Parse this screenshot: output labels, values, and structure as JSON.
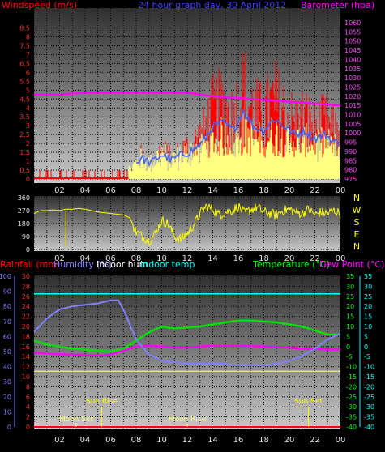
{
  "page_title": "24 hour graph day, 30 April 2012",
  "x_ticks": [
    "02",
    "04",
    "06",
    "08",
    "10",
    "12",
    "14",
    "16",
    "18",
    "20",
    "22",
    "00"
  ],
  "colors": {
    "wind": "#ff0000",
    "gust_fill": "#ffff80",
    "avg_line": "#4060ff",
    "baro": "#ff00ff",
    "winddir": "#ffff00",
    "humidity": "#8080ff",
    "indoor_hum": "#ffffff",
    "indoor_temp": "#00ffff",
    "temp": "#00e000",
    "dew": "#ff00ff",
    "rain": "#ff0000",
    "dewpt_hline": "#ffff80",
    "sun": "#ffff00",
    "moon": "#ffff80"
  },
  "chart_data": [
    {
      "type": "line",
      "name": "wind-baro",
      "labels": {
        "left": "Windspeed (m/s)",
        "center": "24 hour graph day, 30 April 2012",
        "right": "Barometer (hpa)"
      },
      "y_left_ticks": [
        "0",
        "0.5",
        "1",
        "1.5",
        "2",
        "2.5",
        "3",
        "3.5",
        "4",
        "4.5",
        "5",
        "5.5",
        "6",
        "6.5",
        "7",
        "7.5",
        "8",
        "8.5"
      ],
      "y_right_ticks": [
        "975",
        "980",
        "985",
        "990",
        "995",
        "1000",
        "1005",
        "1010",
        "1015",
        "1020",
        "1025",
        "1030",
        "1035",
        "1040",
        "1045",
        "1050",
        "1055",
        "1060"
      ],
      "ylim_left": [
        0,
        8.8
      ],
      "ylim_right": [
        975,
        1060
      ],
      "xlim": [
        0,
        24
      ],
      "series": [
        {
          "name": "Windspeed",
          "x": [
            0.6,
            1.2,
            2.0,
            2.8,
            3.6,
            4.4,
            5.2,
            6.0,
            6.8,
            7.6,
            8.4,
            9.2,
            10.0,
            10.8,
            11.6,
            12.4,
            13.2,
            14.0,
            14.8,
            15.6,
            16.4,
            17.2,
            18.0,
            18.8,
            19.6,
            20.4,
            21.2,
            22.0,
            22.8,
            23.6
          ],
          "y": [
            0.5,
            0.5,
            0.4,
            0.5,
            0.5,
            0.4,
            0.5,
            0.4,
            0.5,
            1.0,
            2.0,
            1.5,
            2.5,
            1.8,
            2.5,
            3.0,
            4.0,
            6.0,
            6.5,
            5.5,
            8.0,
            6.0,
            5.5,
            7.0,
            6.0,
            5.0,
            5.5,
            4.5,
            5.0,
            4.0
          ]
        },
        {
          "name": "Barometer",
          "x": [
            0,
            2,
            4,
            6,
            8,
            10,
            12,
            14,
            16,
            18,
            20,
            22,
            24
          ],
          "y": [
            1021,
            1021,
            1022,
            1022,
            1022,
            1022,
            1022,
            1020,
            1019,
            1018,
            1017,
            1016,
            1015
          ]
        }
      ]
    },
    {
      "type": "line",
      "name": "wind-direction",
      "y_ticks": [
        "360",
        "270",
        "180",
        "90",
        "0"
      ],
      "compass": [
        "N",
        "W",
        "S",
        "E",
        "N"
      ],
      "ylim": [
        0,
        360
      ],
      "series": [
        {
          "name": "Wind direction",
          "x": [
            0,
            0.5,
            1.0,
            1.5,
            2.0,
            2.5,
            3.0,
            3.5,
            4.0,
            4.5,
            5.0,
            5.5,
            6.0,
            6.5,
            7.0,
            7.5,
            8.0,
            8.5,
            9.0,
            9.5,
            10.0,
            10.5,
            11.0,
            11.5,
            12.0,
            12.5,
            13.0,
            13.5,
            14.0,
            14.5,
            15.0,
            15.5,
            16.0,
            16.5,
            17.0,
            17.5,
            18.0,
            18.5,
            19.0,
            19.5,
            20.0,
            20.5,
            21.0,
            21.5,
            22.0,
            22.5,
            23.0,
            23.5,
            24.0
          ],
          "y": [
            250,
            270,
            270,
            275,
            270,
            280,
            280,
            285,
            280,
            270,
            260,
            255,
            250,
            245,
            240,
            220,
            120,
            90,
            60,
            110,
            200,
            180,
            90,
            70,
            110,
            170,
            250,
            300,
            280,
            240,
            260,
            270,
            300,
            250,
            280,
            290,
            260,
            250,
            240,
            270,
            280,
            260,
            250,
            280,
            240,
            260,
            250,
            270,
            250
          ]
        }
      ]
    },
    {
      "type": "line",
      "name": "temp-humidity",
      "labels": {
        "rain": "Rainfall (mm)",
        "humidity": "Humidity (%)",
        "indoor_hum": "Indoor hum",
        "indoor_temp": "Indoor temp",
        "temp": "Temperature (°C)",
        "dew": "Dew Point (°C)"
      },
      "y_rain_ticks": [
        "0",
        "2",
        "4",
        "6",
        "8",
        "10",
        "12",
        "14",
        "16",
        "18",
        "20",
        "22",
        "24",
        "26",
        "28",
        "30"
      ],
      "y_hum_ticks": [
        "0",
        "10",
        "20",
        "30",
        "40",
        "50",
        "60",
        "70",
        "80",
        "90",
        "100"
      ],
      "y_temp_ticks": [
        "-40",
        "-35",
        "-30",
        "-25",
        "-20",
        "-15",
        "-10",
        "-5",
        "0",
        "5",
        "10",
        "15",
        "20",
        "25",
        "30",
        "35"
      ],
      "ylim_rain": [
        0,
        30
      ],
      "ylim_hum": [
        0,
        100
      ],
      "ylim_temp": [
        -40,
        35
      ],
      "series": [
        {
          "name": "Humidity",
          "x": [
            0,
            1,
            2,
            3,
            4,
            5,
            6,
            6.6,
            7,
            7.5,
            8,
            9,
            10,
            11,
            12,
            13,
            14,
            15,
            16,
            17,
            18,
            19,
            20,
            21,
            22,
            23,
            24
          ],
          "y": [
            63,
            72,
            78,
            80,
            81,
            82,
            84,
            84,
            78,
            68,
            58,
            48,
            44,
            43,
            42,
            42,
            42,
            42,
            41,
            41,
            41,
            42,
            44,
            47,
            52,
            58,
            62
          ]
        },
        {
          "name": "Temperature",
          "x": [
            0,
            1,
            2,
            3,
            4,
            5,
            6,
            7,
            8,
            9,
            10,
            11,
            12,
            13,
            14,
            15,
            16,
            17,
            18,
            19,
            20,
            21,
            22,
            23,
            24
          ],
          "y": [
            3,
            1,
            0,
            -1,
            -1.5,
            -2,
            -2.5,
            -1,
            3,
            7,
            10,
            9,
            9.5,
            10,
            11,
            12,
            13,
            13,
            12.5,
            12,
            11,
            10,
            8,
            6,
            6
          ]
        },
        {
          "name": "Dew Point",
          "x": [
            0,
            1,
            2,
            3,
            4,
            5,
            6,
            7,
            8,
            9,
            10,
            11,
            12,
            13,
            14,
            15,
            16,
            17,
            18,
            19,
            20,
            21,
            22,
            23,
            24
          ],
          "y": [
            -3,
            -3.5,
            -3.8,
            -4,
            -4.2,
            -4.5,
            -4,
            -2,
            0,
            0.5,
            0,
            -0.5,
            -0.5,
            0,
            0.5,
            0.5,
            0.5,
            0.3,
            0,
            -0.2,
            -0.5,
            -1,
            -1.2,
            -1.5,
            -1.5
          ]
        },
        {
          "name": "Indoor temp",
          "x": [
            0,
            24
          ],
          "y": [
            26.5,
            26.5
          ]
        },
        {
          "name": "Indoor hum",
          "x": [
            0,
            24
          ],
          "y": [
            37,
            37
          ]
        },
        {
          "name": "Rainfall",
          "x": [
            0,
            24
          ],
          "y": [
            0,
            0
          ]
        }
      ],
      "markers": [
        {
          "label": "Sun Rise",
          "x": 5.3
        },
        {
          "label": "Moon Set",
          "x": 3.3
        },
        {
          "label": "Moon Rise",
          "x": 12.0
        },
        {
          "label": "Sun Set",
          "x": 21.5
        }
      ]
    }
  ]
}
